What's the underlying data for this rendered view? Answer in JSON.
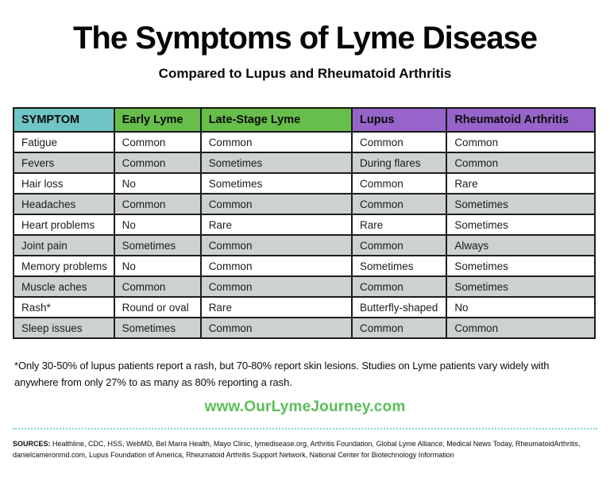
{
  "title": "The Symptoms of Lyme Disease",
  "subtitle": "Compared to Lupus and Rheumatoid Arthritis",
  "table": {
    "columns": [
      {
        "label": "SYMPTOM",
        "color": "#6fc5c3"
      },
      {
        "label": "Early Lyme",
        "color": "#68be4a"
      },
      {
        "label": "Late-Stage Lyme",
        "color": "#68be4a"
      },
      {
        "label": "Lupus",
        "color": "#9765c9"
      },
      {
        "label": "Rheumatoid Arthritis",
        "color": "#9765c9"
      }
    ],
    "rows": [
      [
        "Fatigue",
        "Common",
        "Common",
        "Common",
        "Common"
      ],
      [
        "Fevers",
        "Common",
        "Sometimes",
        "During flares",
        "Common"
      ],
      [
        "Hair loss",
        "No",
        "Sometimes",
        "Common",
        "Rare"
      ],
      [
        "Headaches",
        "Common",
        "Common",
        "Common",
        "Sometimes"
      ],
      [
        "Heart problems",
        "No",
        "Rare",
        "Rare",
        "Sometimes"
      ],
      [
        "Joint pain",
        "Sometimes",
        "Common",
        "Common",
        "Always"
      ],
      [
        "Memory problems",
        "No",
        "Common",
        "Sometimes",
        "Sometimes"
      ],
      [
        "Muscle aches",
        "Common",
        "Common",
        "Common",
        "Sometimes"
      ],
      [
        "Rash*",
        "Round or oval",
        "Rare",
        "Butterfly-shaped",
        "No"
      ],
      [
        "Sleep issues",
        "Sometimes",
        "Common",
        "Common",
        "Common"
      ]
    ]
  },
  "footnote": "*Only 30-50% of lupus patients report a rash, but 70-80% report skin lesions. Studies on Lyme patients vary widely with anywhere from only 27% to as many as 80% reporting a rash.",
  "website": "www.OurLymeJourney.com",
  "sources": {
    "label": "SOURCES:",
    "text": " Healthline, CDC, HSS, WebMD, Bel Marra Health, Mayo Clinic, lymedisease.org, Arthritis Foundation, Global Lyme Alliance, Medical News Today, RheumatoidArthritis, danielcameronmd.com, Lupus Foundation of America, Rheumatoid Arthritis Support Network, National Center for Biotechnology Information"
  },
  "colors": {
    "header_symptom": "#6fc5c3",
    "header_lyme": "#68be4a",
    "header_other_diseases": "#9765c9",
    "row_shaded": "#cdd1d0",
    "row_plain": "#ffffff",
    "table_border": "#1d1d1d",
    "website_green": "#5bbe58",
    "divider_teal": "#85d1d1"
  }
}
